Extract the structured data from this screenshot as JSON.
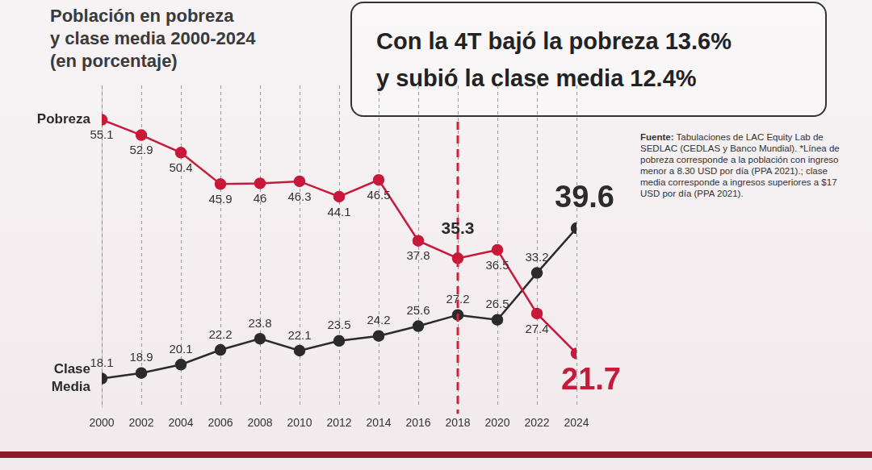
{
  "chart_data": {
    "type": "line",
    "title": [
      "Población en pobreza",
      "y clase media 2000-2024"
    ],
    "subtitle": "(en porcentaje)",
    "annotations": [
      {
        "text": [
          "Con la 4T bajó la pobreza 13.6%",
          "y subió la clase media 12.4%"
        ],
        "x": "2018"
      }
    ],
    "source": {
      "label": "Fuente:",
      "text": "Tabulaciones de LAC Equity Lab de SEDLAC (CEDLAS y Banco Mundial). *Línea de pobreza corresponde a la población con ingreso menor a 8.30 USD por día (PPA 2021).; clase media corresponde a ingresos superiores a $17 USD por día (PPA 2021)."
    },
    "categories": [
      "2000",
      "2002",
      "2004",
      "2006",
      "2008",
      "2010",
      "2012",
      "2014",
      "2016",
      "2018",
      "2020",
      "2022",
      "2024"
    ],
    "series": [
      {
        "name": "Pobreza",
        "color": "#c8193a",
        "marker": "circle",
        "values": [
          55.1,
          52.9,
          50.4,
          45.9,
          46,
          46.3,
          44.1,
          46.5,
          37.8,
          35.3,
          36.5,
          27.4,
          21.7
        ]
      },
      {
        "name": "Clase Media",
        "color": "#2b2b2b",
        "marker": "circle",
        "values": [
          18.1,
          18.9,
          20.1,
          22.2,
          23.8,
          22.1,
          23.5,
          24.2,
          25.6,
          27.2,
          26.5,
          33.2,
          39.6
        ]
      }
    ],
    "ylim": [
      14,
      60
    ],
    "yticks": [],
    "tick_labels": "x",
    "grid": true,
    "data_labels": true
  }
}
